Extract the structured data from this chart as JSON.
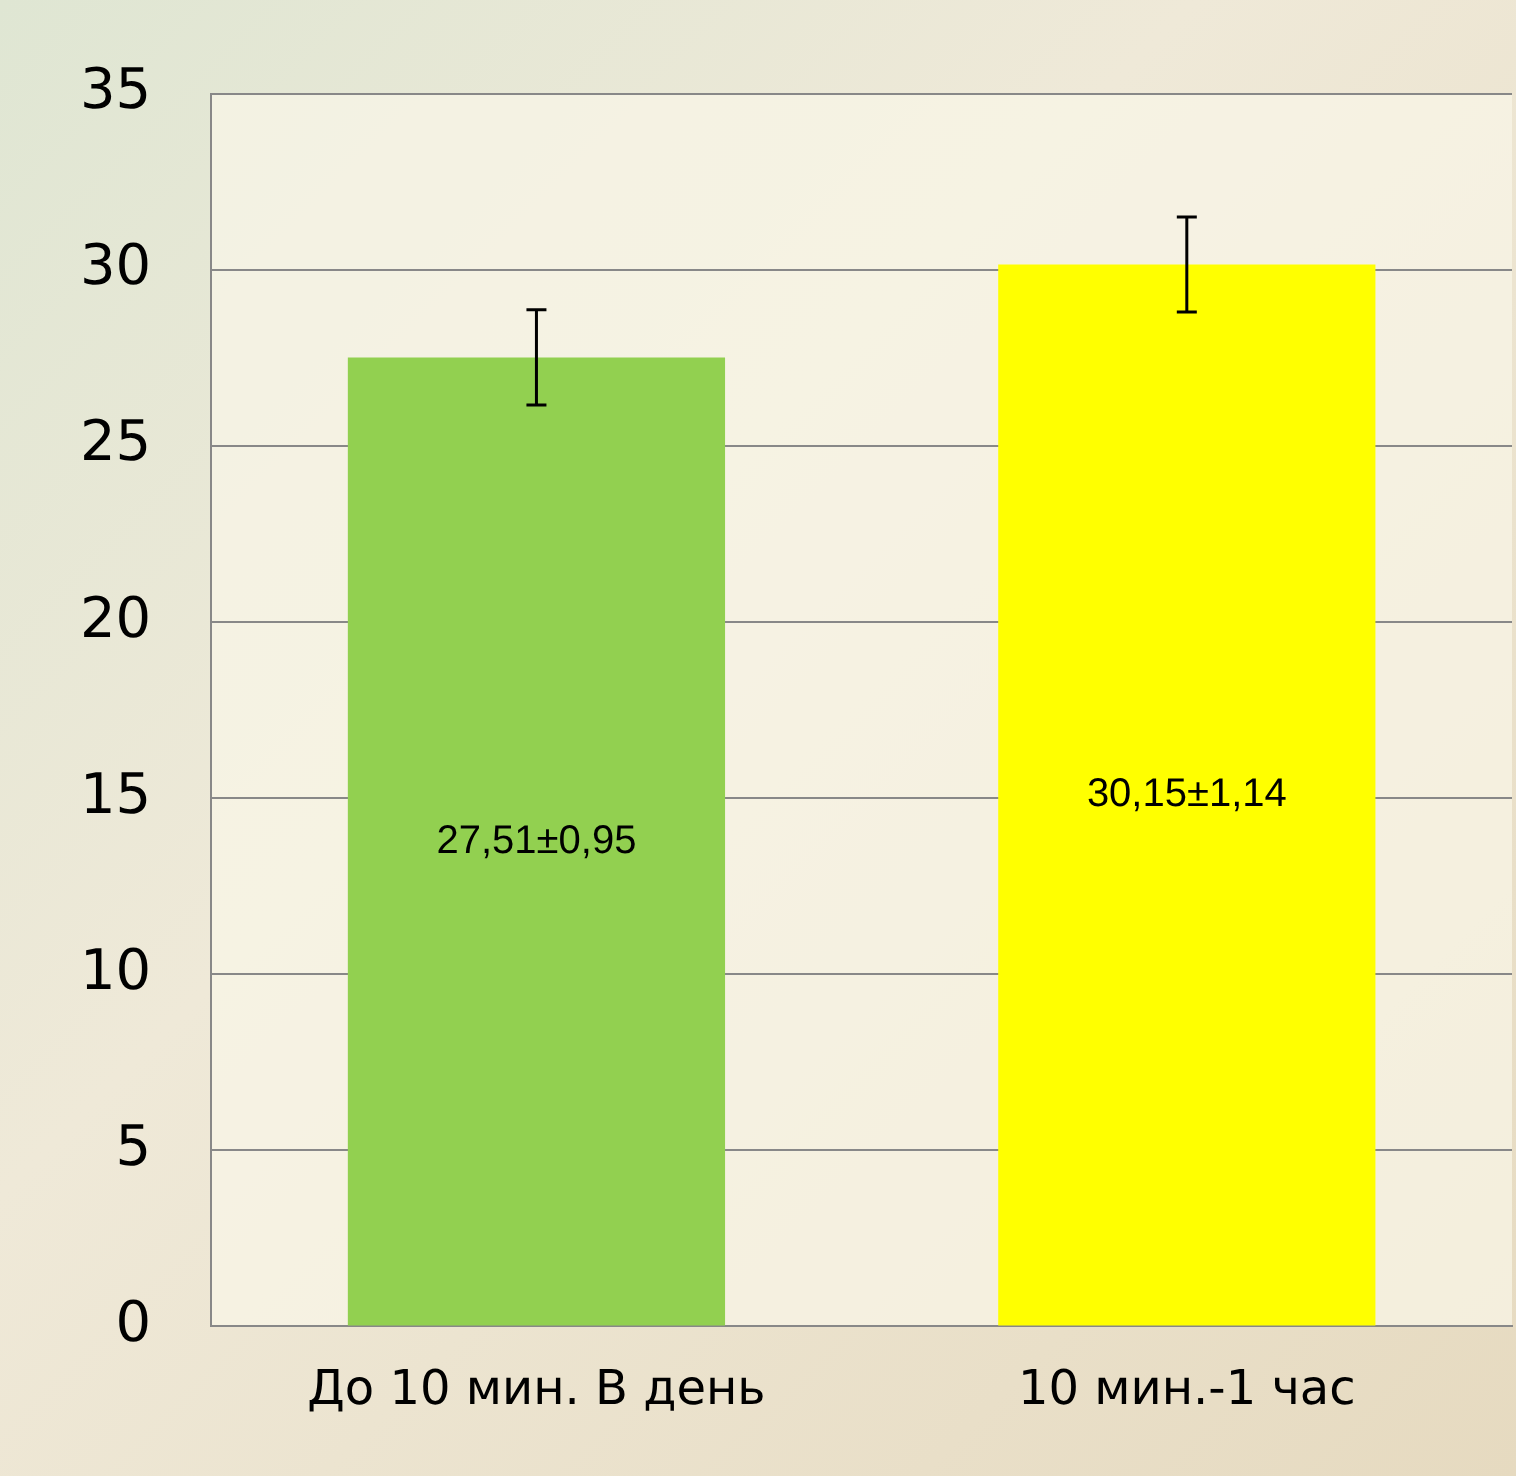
{
  "chart_data": {
    "type": "bar",
    "categories": [
      "До 10 мин. В день",
      "10 мин.-1 час"
    ],
    "values": [
      27.51,
      30.15
    ],
    "colors": [
      "#92d050",
      "#ffff00"
    ],
    "errors": [
      1.35,
      1.35
    ],
    "value_labels": [
      "27,51±0,95",
      "30,15±1,14"
    ],
    "ylim": [
      0,
      35
    ],
    "yticks": [
      0,
      5,
      10,
      15,
      20,
      25,
      30,
      35
    ],
    "grid": "y",
    "legend": false
  }
}
